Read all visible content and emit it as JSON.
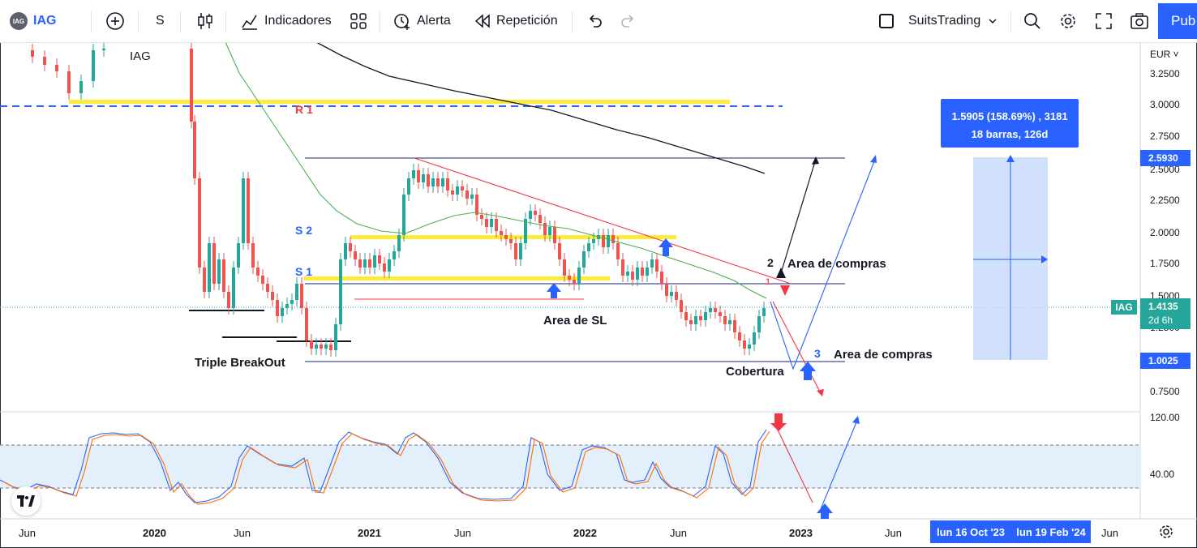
{
  "toolbar": {
    "logo_text": "IAG",
    "symbol": "IAG",
    "interval": "S",
    "indicators_label": "Indicadores",
    "alert_label": "Alerta",
    "replay_label": "Repetición",
    "layout_name": "SuitsTrading",
    "publish_label": "Pub",
    "icons": [
      "plus-circle-icon",
      "candles-icon",
      "indicators-icon",
      "templates-icon",
      "alarm-clock-icon",
      "replay-icon",
      "undo-icon",
      "redo-icon",
      "search-icon",
      "gear-icon",
      "fullscreen-icon",
      "camera-icon"
    ]
  },
  "chart": {
    "legend_symbol": "IAG",
    "currency": "EUR",
    "price_axis": [
      "3.2500",
      "3.0000",
      "2.7500",
      "2.5000",
      "2.2500",
      "2.0000",
      "1.7500",
      "1.5000",
      "1.2500",
      "0.7500"
    ],
    "osc_axis": [
      "120.00",
      "40.00"
    ],
    "price_tags": {
      "top": "2.5930",
      "current": "1.4135",
      "current_sub": "2d 6h",
      "current_symbol": "IAG",
      "bottom": "1.0025"
    },
    "time_axis": [
      "Jun",
      "2020",
      "Jun",
      "2021",
      "Jun",
      "2022",
      "Jun",
      "2023",
      "Jun",
      "Jun"
    ],
    "date_range": [
      "lun 16 Oct '23",
      "lun 19 Feb '24"
    ],
    "measure": {
      "line1": "1.5905 (158.69%) , 3181",
      "line2": "18 barras, 126d"
    },
    "annotations": {
      "r1": "R 1",
      "s2": "S 2",
      "s1": "S 1",
      "triple": "Triple BreakOut",
      "sl_area": "Area de SL",
      "buy_area_1": "Area de compras",
      "buy_area_2": "Area de compras",
      "cover": "Cobertura",
      "n1": "1",
      "n2": "2",
      "n3": "3"
    },
    "colors": {
      "accent": "#2962ff",
      "up": "#26a69a",
      "down": "#ef5350",
      "ma_green": "#4caf50",
      "ma_black": "#131722",
      "yellow": "#ffeb3b",
      "current_price": "#26a69a"
    }
  }
}
